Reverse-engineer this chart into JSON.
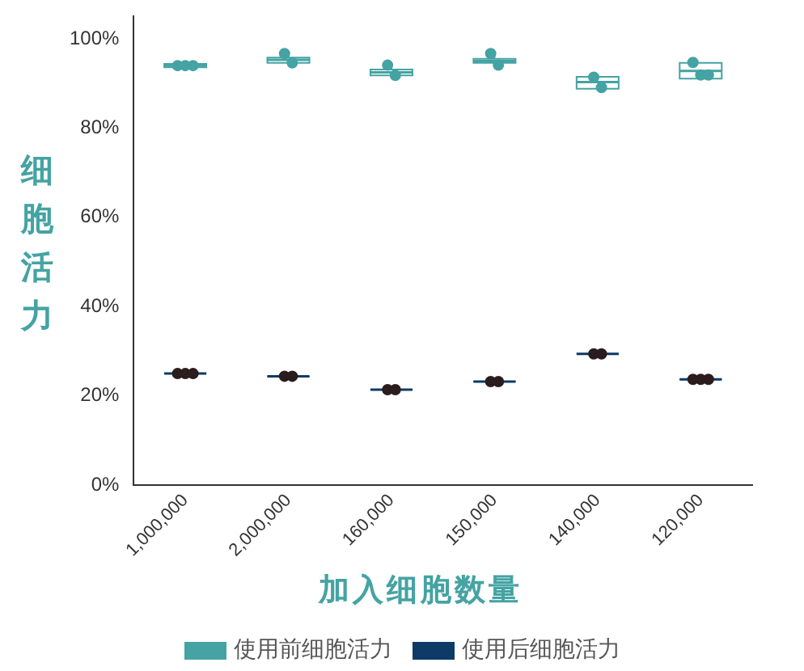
{
  "chart_data": {
    "type": "box",
    "xlabel": "加入细胞数量",
    "ylabel": "细胞活力",
    "categories": [
      "1,000,000",
      "2,000,000",
      "160,000",
      "150,000",
      "140,000",
      "120,000"
    ],
    "ylim": [
      0,
      105
    ],
    "yticks": [
      {
        "value": 0,
        "label": "0%"
      },
      {
        "value": 20,
        "label": "20%"
      },
      {
        "value": 40,
        "label": "40%"
      },
      {
        "value": 60,
        "label": "60%"
      },
      {
        "value": 80,
        "label": "80%"
      },
      {
        "value": 100,
        "label": "100%"
      }
    ],
    "grid": false,
    "legend": "bottom",
    "series": [
      {
        "name": "使用前细胞活力",
        "color": "#45a3a3",
        "type": "box",
        "boxes": [
          {
            "low": 94,
            "q1": 93.6,
            "median": 94,
            "q3": 94.4,
            "high": 94
          },
          {
            "low": 94.6,
            "q1": 94.6,
            "median": 95.3,
            "q3": 95.8,
            "high": 96.7
          },
          {
            "low": 91.8,
            "q1": 91.8,
            "median": 92.5,
            "q3": 93.1,
            "high": 94.1
          },
          {
            "low": 94.1,
            "q1": 94.6,
            "median": 95,
            "q3": 95.5,
            "high": 96.7
          },
          {
            "low": 89.1,
            "q1": 88.8,
            "median": 90.3,
            "q3": 91.5,
            "high": 91.4
          },
          {
            "low": 91.9,
            "q1": 91.1,
            "median": 92.8,
            "q3": 94.6,
            "high": 94.7
          }
        ]
      },
      {
        "color": "#45a3a3",
        "type": "scatter",
        "x": [
          "1,000,000",
          "1,000,000",
          "1,000,000",
          "2,000,000",
          "2,000,000",
          "160,000",
          "160,000",
          "150,000",
          "150,000",
          "140,000",
          "140,000",
          "120,000",
          "120,000",
          "120,000"
        ],
        "values": [
          94,
          94,
          94,
          96.7,
          94.6,
          94.1,
          91.8,
          96.7,
          94.1,
          91.4,
          89.1,
          94.7,
          91.9,
          91.9
        ]
      },
      {
        "name": "使用后细胞活力",
        "color": "#0d3a66",
        "type": "box",
        "boxes": [
          {
            "low": 25,
            "q1": 25,
            "median": 25,
            "q3": 25,
            "high": 25
          },
          {
            "low": 24.4,
            "q1": 24.4,
            "median": 24.4,
            "q3": 24.4,
            "high": 24.4
          },
          {
            "low": 21.4,
            "q1": 21.4,
            "median": 21.4,
            "q3": 21.4,
            "high": 21.4
          },
          {
            "low": 23.2,
            "q1": 23.2,
            "median": 23.2,
            "q3": 23.2,
            "high": 23.2
          },
          {
            "low": 29.4,
            "q1": 29.4,
            "median": 29.4,
            "q3": 29.4,
            "high": 29.4
          },
          {
            "low": 23.7,
            "q1": 23.7,
            "median": 23.7,
            "q3": 23.7,
            "high": 23.7
          }
        ]
      },
      {
        "color": "#2b1d1d",
        "type": "scatter",
        "x": [
          "1,000,000",
          "1,000,000",
          "1,000,000",
          "2,000,000",
          "2,000,000",
          "160,000",
          "160,000",
          "150,000",
          "150,000",
          "140,000",
          "140,000",
          "120,000",
          "120,000",
          "120,000"
        ],
        "values": [
          25,
          25,
          25,
          24.4,
          24.4,
          21.4,
          21.4,
          23.2,
          23.2,
          29.4,
          29.4,
          23.7,
          23.7,
          23.7
        ]
      }
    ]
  }
}
